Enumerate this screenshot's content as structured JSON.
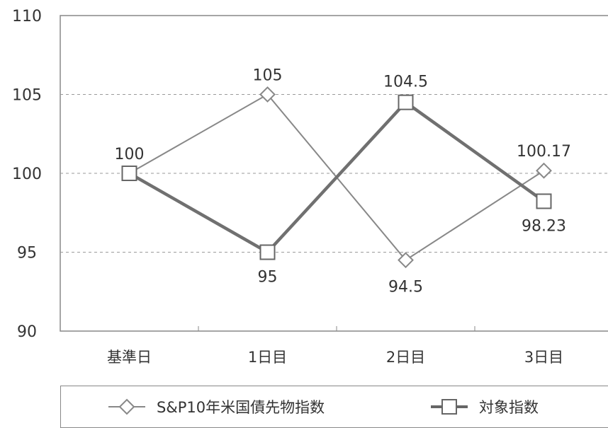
{
  "chart_data": {
    "type": "line",
    "categories": [
      "基準日",
      "1日目",
      "2日目",
      "3日目"
    ],
    "ylim": [
      90,
      110
    ],
    "yticks": [
      90,
      95,
      100,
      105,
      110
    ],
    "grid": "horizontal dashed",
    "legend_position": "bottom",
    "series": [
      {
        "name": "S&P10年米国債先物指数",
        "marker": "diamond",
        "color": "#888888",
        "values": [
          100,
          105,
          94.5,
          100.17
        ],
        "labels": [
          "100",
          "105",
          "94.5",
          "100.17"
        ]
      },
      {
        "name": "対象指数",
        "marker": "square",
        "color": "#777777",
        "values": [
          100,
          95,
          104.5,
          98.23
        ],
        "labels": [
          "",
          "95",
          "104.5",
          "98.23"
        ]
      }
    ]
  }
}
